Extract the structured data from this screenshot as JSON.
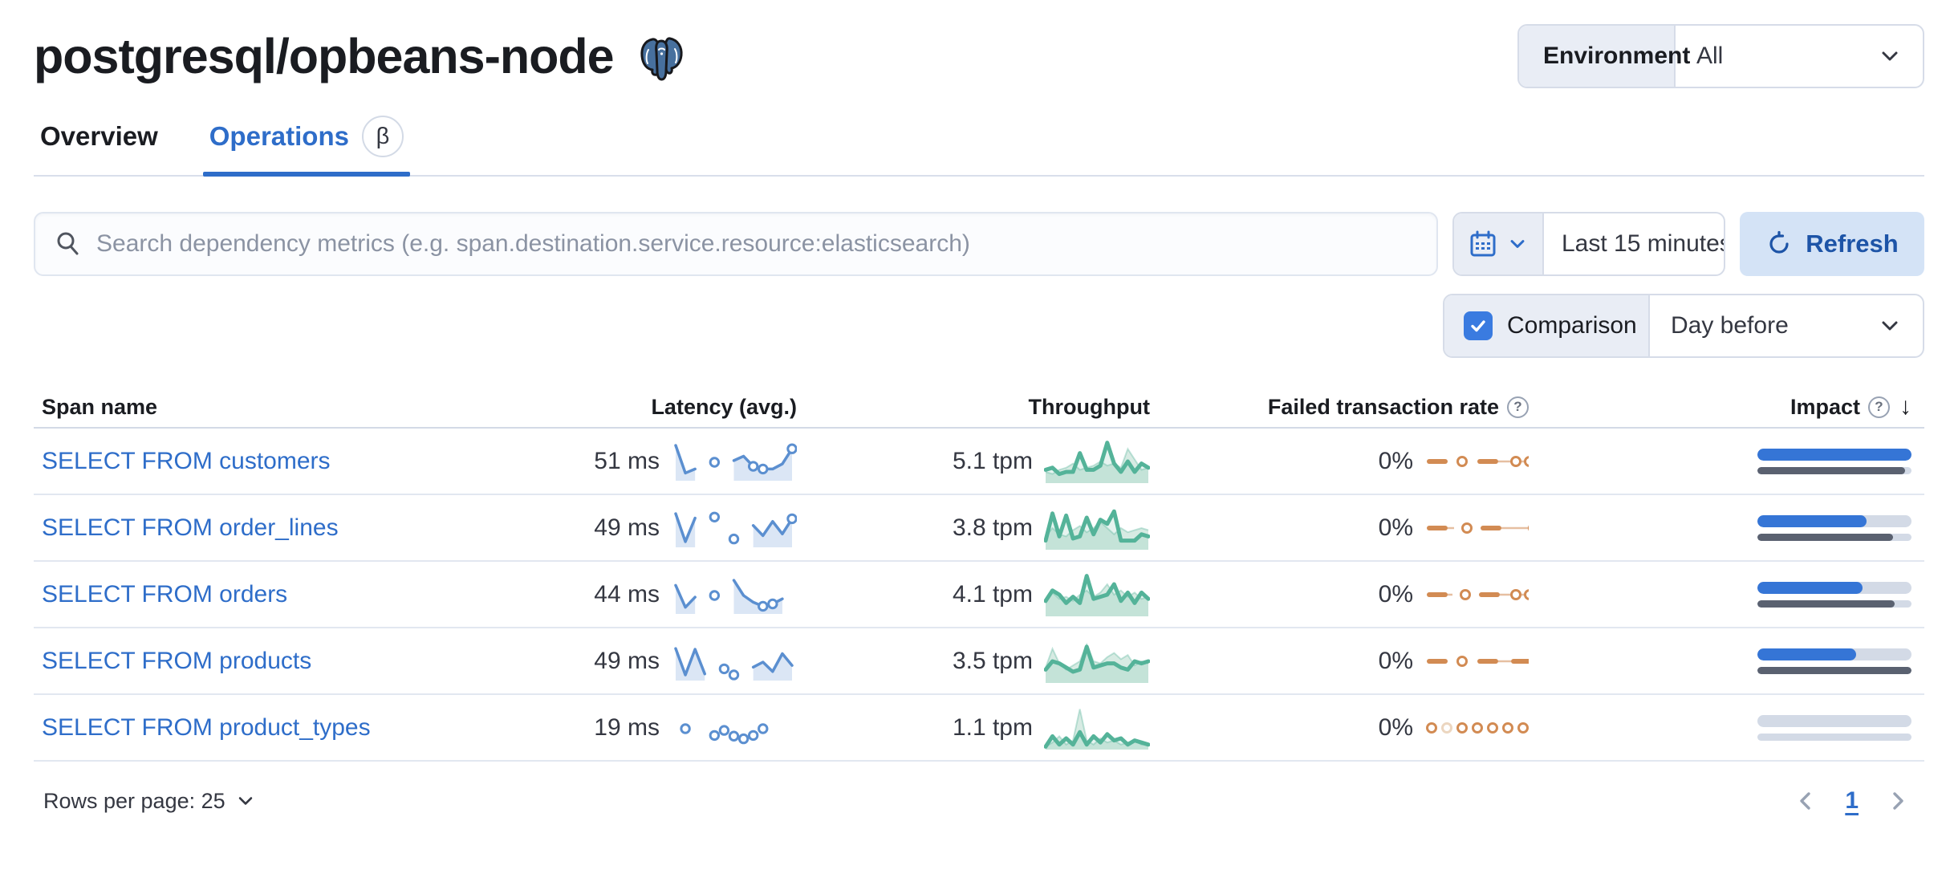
{
  "colors": {
    "primary": "#2e6dc9",
    "bar_blue": "#3575d6",
    "bar_gray": "#5a6170",
    "track": "#d3dae6",
    "spark_blue": "#5b8fd0",
    "green": "#54b399",
    "green_fill": "#d7ebe3",
    "orange": "#d28b53",
    "orange_light": "#ecd6c0"
  },
  "header": {
    "title": "postgresql/opbeans-node"
  },
  "environment": {
    "label": "Environment",
    "value": "All"
  },
  "tabs": [
    {
      "label": "Overview",
      "active": false
    },
    {
      "label": "Operations",
      "badge": "β",
      "active": true
    }
  ],
  "search": {
    "placeholder": "Search dependency metrics (e.g. span.destination.service.resource:elasticsearch)"
  },
  "time_picker": {
    "value": "Last 15 minutes"
  },
  "refresh": {
    "label": "Refresh"
  },
  "comparison": {
    "label": "Comparison",
    "checked": true,
    "value": "Day before"
  },
  "table": {
    "columns": {
      "span_name": "Span name",
      "latency": "Latency (avg.)",
      "throughput": "Throughput",
      "failed_rate": "Failed transaction rate",
      "impact": "Impact"
    },
    "rows": [
      {
        "span_name": "SELECT FROM customers",
        "latency": "51 ms",
        "throughput": "5.1 tpm",
        "failed_rate": "0%",
        "latency_spark": {
          "v": [
            1,
            0.18,
            0.3,
            null,
            null,
            null,
            0.55,
            0.68,
            0.38,
            0.3,
            0.3,
            0.45,
            0.9
          ],
          "dots": [
            [
              4,
              0.5
            ],
            [
              8,
              0.38
            ],
            [
              9,
              0.3
            ],
            [
              12,
              0.9
            ]
          ]
        },
        "throughput_spark": {
          "current": [
            0.3,
            0.35,
            0.2,
            0.25,
            0.25,
            0.7,
            0.3,
            0.3,
            0.4,
            0.95,
            0.45,
            0.25,
            0.5,
            0.25,
            0.45,
            0.35
          ],
          "previous": [
            0.25,
            0.2,
            0.3,
            0.35,
            0.45,
            0.3,
            0.35,
            0.4,
            0.5,
            0.4,
            0.45,
            0.35,
            0.8,
            0.55,
            0.3,
            0.35
          ]
        },
        "failed_spark": [
          "dash",
          "gap:12",
          "ring",
          "gap:12",
          "dash",
          "thin:16",
          "ring",
          "thin:4",
          "ring",
          "thin:10"
        ],
        "impact": {
          "current": 1.0,
          "previous": 0.96
        }
      },
      {
        "span_name": "SELECT FROM order_lines",
        "latency": "49 ms",
        "throughput": "3.8 tpm",
        "failed_rate": "0%",
        "latency_spark": {
          "v": [
            0.95,
            0.12,
            0.82,
            null,
            null,
            null,
            null,
            null,
            0.6,
            0.3,
            0.72,
            0.35,
            0.8
          ],
          "dots": [
            [
              4,
              0.85
            ],
            [
              6,
              0.2
            ],
            [
              12,
              0.8
            ]
          ]
        },
        "throughput_spark": {
          "current": [
            0.2,
            0.85,
            0.3,
            0.8,
            0.25,
            0.3,
            0.75,
            0.35,
            0.7,
            0.6,
            0.9,
            0.2,
            0.2,
            0.2,
            0.35,
            0.3
          ],
          "previous": [
            0.3,
            0.5,
            0.35,
            0.3,
            0.45,
            0.55,
            0.4,
            0.5,
            0.65,
            0.5,
            0.35,
            0.5,
            0.4,
            0.45,
            0.5,
            0.45
          ]
        },
        "failed_spark": [
          "dash",
          "thin:8",
          "gap:10",
          "ring",
          "gap:10",
          "dash",
          "thin:34",
          "ring",
          "thin:8"
        ],
        "impact": {
          "current": 0.71,
          "previous": 0.88
        }
      },
      {
        "span_name": "SELECT FROM orders",
        "latency": "44 ms",
        "throughput": "4.1 tpm",
        "failed_rate": "0%",
        "latency_spark": {
          "v": [
            0.8,
            0.15,
            0.45,
            null,
            null,
            null,
            0.95,
            0.5,
            0.3,
            0.18,
            0.25,
            0.4,
            null
          ],
          "dots": [
            [
              4,
              0.5
            ],
            [
              9,
              0.18
            ],
            [
              10,
              0.25
            ]
          ]
        },
        "throughput_spark": {
          "current": [
            0.35,
            0.6,
            0.5,
            0.3,
            0.45,
            0.3,
            0.95,
            0.4,
            0.45,
            0.5,
            0.75,
            0.35,
            0.55,
            0.3,
            0.55,
            0.4
          ],
          "previous": [
            0.3,
            0.55,
            0.4,
            0.45,
            0.35,
            0.5,
            0.6,
            0.45,
            0.55,
            0.75,
            0.5,
            0.6,
            0.45,
            0.55,
            0.4,
            0.45
          ]
        },
        "failed_spark": [
          "dash",
          "thin:6",
          "gap:10",
          "ring",
          "gap:10",
          "dash",
          "thin:14",
          "ring",
          "thin:4",
          "ring",
          "thin:6"
        ],
        "impact": {
          "current": 0.68,
          "previous": 0.89
        }
      },
      {
        "span_name": "SELECT FROM products",
        "latency": "49 ms",
        "throughput": "3.5 tpm",
        "failed_rate": "0%",
        "latency_spark": {
          "v": [
            0.9,
            0.12,
            0.88,
            0.15,
            null,
            null,
            null,
            null,
            0.35,
            0.5,
            0.22,
            0.75,
            0.4
          ],
          "dots": [
            [
              5,
              0.3
            ],
            [
              6,
              0.12
            ]
          ]
        },
        "throughput_spark": {
          "current": [
            0.3,
            0.5,
            0.45,
            0.35,
            0.25,
            0.3,
            0.85,
            0.35,
            0.4,
            0.45,
            0.45,
            0.35,
            0.3,
            0.5,
            0.45,
            0.5
          ],
          "previous": [
            0.35,
            0.8,
            0.45,
            0.3,
            0.4,
            0.5,
            0.9,
            0.5,
            0.45,
            0.6,
            0.7,
            0.55,
            0.65,
            0.4,
            0.5,
            0.45
          ]
        },
        "failed_spark": [
          "dash",
          "gap:12",
          "ring",
          "gap:12",
          "dash",
          "thin:16",
          "dash",
          "thin:6"
        ],
        "impact": {
          "current": 0.64,
          "previous": 1.0
        }
      },
      {
        "span_name": "SELECT FROM product_types",
        "latency": "19 ms",
        "throughput": "1.1 tpm",
        "failed_rate": "0%",
        "latency_spark": {
          "v": [
            null,
            null,
            null,
            null,
            null,
            null,
            null,
            null,
            null,
            null,
            null,
            null,
            null
          ],
          "dots": [
            [
              1,
              0.5
            ],
            [
              4,
              0.3
            ],
            [
              5,
              0.45
            ],
            [
              6,
              0.28
            ],
            [
              7,
              0.2
            ],
            [
              8,
              0.3
            ],
            [
              9,
              0.5
            ]
          ]
        },
        "throughput_spark": {
          "current": [
            0.05,
            0.3,
            0.1,
            0.25,
            0.1,
            0.4,
            0.1,
            0.3,
            0.15,
            0.35,
            0.2,
            0.25,
            0.1,
            0.2,
            0.15,
            0.1
          ],
          "previous": [
            0.05,
            0.15,
            0.3,
            0.1,
            0.2,
            0.95,
            0.2,
            0.1,
            0.25,
            0.15,
            0.2,
            0.1,
            0.15,
            0.2,
            0.1,
            0.1
          ]
        },
        "failed_spark": [
          "ring",
          "gap:6",
          "ring-light",
          "gap:6",
          "ring",
          "gap:6",
          "ring",
          "gap:6",
          "ring",
          "gap:6",
          "ring",
          "gap:6",
          "ring"
        ],
        "impact": {
          "current": 0,
          "previous": 0
        }
      }
    ]
  },
  "footer": {
    "rows_per_page": "Rows per page: 25",
    "page": "1"
  }
}
